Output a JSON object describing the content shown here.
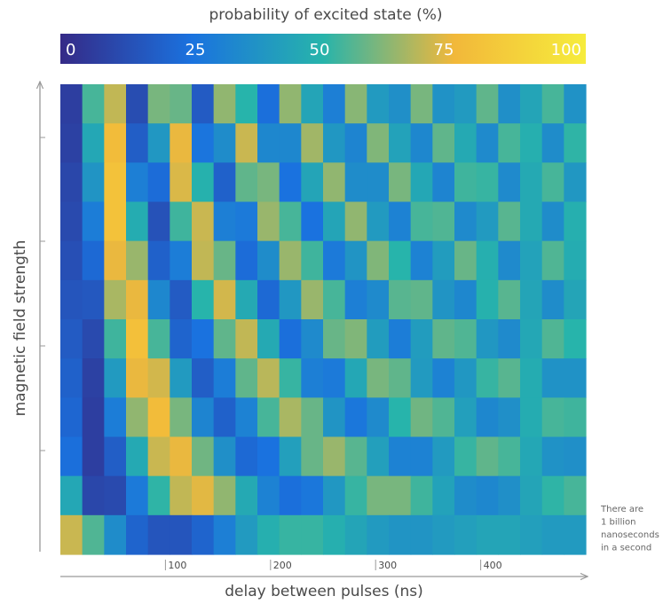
{
  "chart_data": {
    "type": "heatmap",
    "colorbar_title": "probability of excited state (%)",
    "colorbar_ticks": [
      0,
      25,
      50,
      75,
      100
    ],
    "clim": [
      0,
      100
    ],
    "colormap": [
      "#352a87",
      "#1a72df",
      "#27b4ab",
      "#f2b83a",
      "#f6ec3c"
    ],
    "xlabel": "delay between pulses (ns)",
    "ylabel": "magnetic field strength",
    "xlim": [
      0,
      500
    ],
    "xticks": [
      100,
      200,
      300,
      400
    ],
    "annotation": [
      "There are",
      "1 billion",
      "nanoseconds",
      "in a second"
    ],
    "z": [
      [
        7,
        54,
        69,
        12,
        60,
        58,
        17,
        63,
        50,
        24,
        63,
        44,
        30,
        62,
        40,
        36,
        60,
        37,
        40,
        57,
        36,
        44,
        54,
        37
      ],
      [
        8,
        45,
        77,
        18,
        39,
        74,
        26,
        35,
        70,
        33,
        33,
        65,
        39,
        32,
        61,
        43,
        33,
        57,
        46,
        34,
        54,
        48,
        35,
        51
      ],
      [
        10,
        38,
        80,
        30,
        23,
        72,
        49,
        19,
        57,
        60,
        25,
        44,
        63,
        35,
        35,
        60,
        45,
        32,
        53,
        52,
        34,
        46,
        54,
        39
      ],
      [
        11,
        29,
        80,
        47,
        14,
        53,
        70,
        30,
        28,
        64,
        54,
        25,
        44,
        63,
        40,
        31,
        54,
        55,
        34,
        40,
        56,
        46,
        35,
        48
      ],
      [
        13,
        22,
        74,
        64,
        19,
        29,
        69,
        58,
        23,
        35,
        64,
        53,
        28,
        38,
        61,
        50,
        31,
        41,
        58,
        48,
        34,
        43,
        55,
        47
      ],
      [
        15,
        16,
        66,
        74,
        33,
        17,
        50,
        71,
        46,
        22,
        39,
        64,
        54,
        30,
        34,
        56,
        57,
        38,
        33,
        49,
        56,
        44,
        35,
        44
      ],
      [
        17,
        11,
        53,
        79,
        54,
        20,
        25,
        57,
        69,
        46,
        24,
        34,
        58,
        61,
        41,
        29,
        41,
        57,
        55,
        39,
        34,
        45,
        55,
        50
      ],
      [
        19,
        8,
        40,
        74,
        71,
        40,
        18,
        29,
        57,
        68,
        52,
        30,
        28,
        45,
        60,
        57,
        40,
        31,
        39,
        52,
        56,
        47,
        37,
        37
      ],
      [
        21,
        7,
        29,
        63,
        77,
        60,
        32,
        19,
        31,
        54,
        66,
        58,
        38,
        27,
        34,
        50,
        59,
        55,
        42,
        33,
        36,
        47,
        54,
        53
      ],
      [
        24,
        7,
        18,
        46,
        70,
        74,
        59,
        36,
        22,
        25,
        42,
        58,
        64,
        56,
        42,
        31,
        31,
        40,
        52,
        57,
        54,
        45,
        37,
        36
      ],
      [
        45,
        10,
        11,
        28,
        51,
        69,
        73,
        63,
        46,
        31,
        24,
        27,
        39,
        52,
        60,
        60,
        53,
        43,
        35,
        33,
        36,
        44,
        51,
        54
      ],
      [
        70,
        55,
        35,
        20,
        15,
        15,
        20,
        30,
        40,
        48,
        52,
        52,
        48,
        44,
        40,
        38,
        38,
        40,
        42,
        44,
        44,
        42,
        40,
        40
      ]
    ]
  }
}
